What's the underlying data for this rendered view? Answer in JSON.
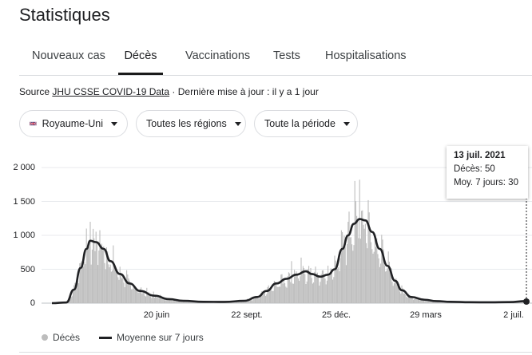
{
  "header": {
    "title": "Statistiques"
  },
  "tabs": [
    {
      "label": "Nouveaux cas",
      "active": false
    },
    {
      "label": "Décès",
      "active": true
    },
    {
      "label": "Vaccinations",
      "active": false
    },
    {
      "label": "Tests",
      "active": false
    },
    {
      "label": "Hospitalisations",
      "active": false
    }
  ],
  "source": {
    "prefix": "Source ",
    "link": "JHU CSSE COVID-19 Data",
    "suffix": " · Dernière mise à jour : il y a 1 jour"
  },
  "filters": {
    "country": "Royaume-Uni",
    "country_flag_icon": "uk-flag-icon",
    "region": "Toutes les régions",
    "period": "Toute la période"
  },
  "tooltip": {
    "date": "13 juil. 2021",
    "daily": "Décès: 50",
    "avg": "Moy. 7 jours: 30"
  },
  "legend": {
    "bars": "Décès",
    "line": "Moyenne sur 7 jours"
  },
  "colors": {
    "bar": "#bdbdbd",
    "line": "#202124",
    "grid": "#e8eaed"
  },
  "chart_data": {
    "type": "bar",
    "ylim": [
      0,
      2000
    ],
    "yticks": [
      "2 000",
      "1 500",
      "1 000",
      "500",
      "0"
    ],
    "xticks": [
      "20 juin",
      "22 sept.",
      "25 déc.",
      "29 mars",
      "2 juil."
    ],
    "grid": true,
    "legend_position": "bottom-left",
    "series": [
      {
        "name": "Moyenne sur 7 jours",
        "type": "line",
        "x": [
          "2020-03-05",
          "2020-03-20",
          "2020-03-28",
          "2020-04-04",
          "2020-04-10",
          "2020-04-14",
          "2020-04-20",
          "2020-04-28",
          "2020-05-05",
          "2020-05-15",
          "2020-05-25",
          "2020-06-05",
          "2020-06-20",
          "2020-07-05",
          "2020-07-20",
          "2020-08-10",
          "2020-09-01",
          "2020-09-22",
          "2020-10-05",
          "2020-10-15",
          "2020-10-25",
          "2020-11-05",
          "2020-11-15",
          "2020-11-25",
          "2020-12-01",
          "2020-12-10",
          "2020-12-18",
          "2020-12-25",
          "2021-01-02",
          "2021-01-08",
          "2021-01-14",
          "2021-01-20",
          "2021-01-26",
          "2021-02-02",
          "2021-02-10",
          "2021-02-18",
          "2021-02-26",
          "2021-03-05",
          "2021-03-15",
          "2021-03-29",
          "2021-04-10",
          "2021-04-25",
          "2021-05-15",
          "2021-06-05",
          "2021-06-25",
          "2021-07-13"
        ],
        "values": [
          0,
          10,
          200,
          520,
          800,
          920,
          900,
          800,
          620,
          430,
          290,
          180,
          110,
          60,
          35,
          20,
          18,
          35,
          90,
          180,
          290,
          360,
          420,
          470,
          430,
          390,
          420,
          500,
          800,
          1000,
          1170,
          1240,
          1220,
          1050,
          800,
          550,
          330,
          190,
          90,
          50,
          30,
          20,
          14,
          12,
          16,
          30
        ]
      },
      {
        "name": "Décès",
        "type": "bar",
        "x": [
          "2020-03-05",
          "2020-04-10",
          "2020-04-14",
          "2020-04-21",
          "2020-06-20",
          "2020-09-22",
          "2020-11-10",
          "2020-12-25",
          "2021-01-09",
          "2021-01-20",
          "2021-02-05",
          "2021-03-29",
          "2021-07-13"
        ],
        "values": [
          0,
          1100,
          1200,
          900,
          80,
          20,
          620,
          700,
          1350,
          1820,
          1000,
          30,
          50
        ]
      }
    ]
  }
}
